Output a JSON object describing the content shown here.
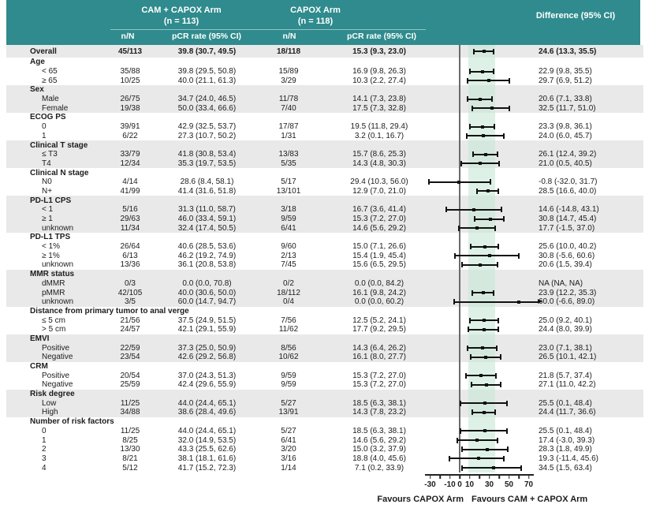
{
  "figure": {
    "header": {
      "arm1": {
        "title": "CAM + CAPOX Arm",
        "n": "(n = 113)"
      },
      "arm2": {
        "title": "CAPOX Arm",
        "n": "(n = 118)"
      },
      "diff_title": "Difference (95% CI)",
      "col_nN": "n/N",
      "col_pcr": "pCR rate (95% CI)"
    },
    "footer": {
      "favours_left": "Favours CAPOX Arm",
      "favours_right": "Favours CAM + CAPOX Arm"
    },
    "colors": {
      "header_bg": "#2f8b8d",
      "stripe": "#e9e9e9",
      "shaded_band": "#dff0e8",
      "marker": "#111111"
    }
  },
  "chart_data": {
    "type": "forest",
    "xlabel": "Difference in pCR rate",
    "xlim": [
      -40,
      80
    ],
    "axis_ticks": [
      -30,
      -20,
      -10,
      0,
      10,
      20,
      30,
      40,
      50,
      60,
      70
    ],
    "axis_tick_labels": [
      -30,
      -10,
      0,
      10,
      30,
      50,
      70
    ],
    "zero_line": 0,
    "shaded_band": [
      9,
      36
    ],
    "rows": [
      {
        "kind": "overall",
        "label": "Overall",
        "nN1": "45/113",
        "pcr1": "39.8 (30.7, 49.5)",
        "nN2": "18/118",
        "pcr2": "15.3 (9.3, 23.0)",
        "diff": "24.6 (13.3, 35.5)",
        "est": 24.6,
        "lo": 13.3,
        "hi": 35.5
      },
      {
        "kind": "group",
        "label": "Age"
      },
      {
        "kind": "item",
        "label": "< 65",
        "nN1": "35/88",
        "pcr1": "39.8 (29.5, 50.8)",
        "nN2": "15/89",
        "pcr2": "16.9 (9.8, 26.3)",
        "diff": "22.9 (9.8, 35.5)",
        "est": 22.9,
        "lo": 9.8,
        "hi": 35.5
      },
      {
        "kind": "item",
        "label": "≥ 65",
        "nN1": "10/25",
        "pcr1": "40.0 (21.1, 61.3)",
        "nN2": "3/29",
        "pcr2": "10.3 (2.2, 27.4)",
        "diff": "29.7 (6.9, 51.2)",
        "est": 29.7,
        "lo": 6.9,
        "hi": 51.2
      },
      {
        "kind": "group",
        "label": "Sex"
      },
      {
        "kind": "item",
        "label": "Male",
        "nN1": "26/75",
        "pcr1": "34.7 (24.0, 46.5)",
        "nN2": "11/78",
        "pcr2": "14.1 (7.3, 23.8)",
        "diff": "20.6 (7.1, 33.8)",
        "est": 20.6,
        "lo": 7.1,
        "hi": 33.8
      },
      {
        "kind": "item",
        "label": "Female",
        "nN1": "19/38",
        "pcr1": "50.0 (33.4, 66.6)",
        "nN2": "7/40",
        "pcr2": "17.5 (7.3, 32.8)",
        "diff": "32.5 (11.7, 51.0)",
        "est": 32.5,
        "lo": 11.7,
        "hi": 51.0
      },
      {
        "kind": "group",
        "label": "ECOG PS"
      },
      {
        "kind": "item",
        "label": "0",
        "nN1": "39/91",
        "pcr1": "42.9 (32.5, 53.7)",
        "nN2": "17/87",
        "pcr2": "19.5 (11.8, 29.4)",
        "diff": "23.3 (9.8, 36.1)",
        "est": 23.3,
        "lo": 9.8,
        "hi": 36.1
      },
      {
        "kind": "item",
        "label": "1",
        "nN1": "6/22",
        "pcr1": "27.3 (10.7, 50.2)",
        "nN2": "1/31",
        "pcr2": "3.2 (0.1, 16.7)",
        "diff": "24.0 (6.0, 45.7)",
        "est": 24.0,
        "lo": 6.0,
        "hi": 45.7
      },
      {
        "kind": "group",
        "label": "Clinical T stage"
      },
      {
        "kind": "item",
        "label": "≤ T3",
        "nN1": "33/79",
        "pcr1": "41.8 (30.8, 53.4)",
        "nN2": "13/83",
        "pcr2": "15.7 (8.6, 25.3)",
        "diff": "26.1 (12.4, 39.2)",
        "est": 26.1,
        "lo": 12.4,
        "hi": 39.2
      },
      {
        "kind": "item",
        "label": "T4",
        "nN1": "12/34",
        "pcr1": "35.3 (19.7, 53.5)",
        "nN2": "5/35",
        "pcr2": "14.3 (4.8, 30.3)",
        "diff": "21.0 (0.5, 40.5)",
        "est": 21.0,
        "lo": 0.5,
        "hi": 40.5
      },
      {
        "kind": "group",
        "label": "Clinical N stage"
      },
      {
        "kind": "item",
        "label": "N0",
        "nN1": "4/14",
        "pcr1": "28.6 (8.4, 58.1)",
        "nN2": "5/17",
        "pcr2": "29.4 (10.3, 56.0)",
        "diff": "-0.8 (-32.0, 31.7)",
        "est": -0.8,
        "lo": -32.0,
        "hi": 31.7
      },
      {
        "kind": "item",
        "label": "N+",
        "nN1": "41/99",
        "pcr1": "41.4 (31.6, 51.8)",
        "nN2": "13/101",
        "pcr2": "12.9 (7.0, 21.0)",
        "diff": "28.5 (16.6, 40.0)",
        "est": 28.5,
        "lo": 16.6,
        "hi": 40.0
      },
      {
        "kind": "group",
        "label": "PD-L1 CPS"
      },
      {
        "kind": "item",
        "label": "< 1",
        "nN1": "5/16",
        "pcr1": "31.3 (11.0, 58.7)",
        "nN2": "3/18",
        "pcr2": "16.7 (3.6, 41.4)",
        "diff": "14.6 (-14.8, 43.1)",
        "est": 14.6,
        "lo": -14.8,
        "hi": 43.1
      },
      {
        "kind": "item",
        "label": "≥ 1",
        "nN1": "29/63",
        "pcr1": "46.0 (33.4, 59.1)",
        "nN2": "9/59",
        "pcr2": "15.3 (7.2, 27.0)",
        "diff": "30.8 (14.7, 45.4)",
        "est": 30.8,
        "lo": 14.7,
        "hi": 45.4
      },
      {
        "kind": "item",
        "label": "unknown",
        "nN1": "11/34",
        "pcr1": "32.4 (17.4, 50.5)",
        "nN2": "6/41",
        "pcr2": "14.6 (5.6, 29.2)",
        "diff": "17.7 (-1.5, 37.0)",
        "est": 17.7,
        "lo": -1.5,
        "hi": 37.0
      },
      {
        "kind": "group",
        "label": "PD-L1 TPS"
      },
      {
        "kind": "item",
        "label": "< 1%",
        "nN1": "26/64",
        "pcr1": "40.6 (28.5, 53.6)",
        "nN2": "9/60",
        "pcr2": "15.0 (7.1, 26.6)",
        "diff": "25.6 (10.0, 40.2)",
        "est": 25.6,
        "lo": 10.0,
        "hi": 40.2
      },
      {
        "kind": "item",
        "label": "≥ 1%",
        "nN1": "6/13",
        "pcr1": "46.2 (19.2, 74.9)",
        "nN2": "2/13",
        "pcr2": "15.4 (1.9, 45.4)",
        "diff": "30.8 (-5.6, 60.6)",
        "est": 30.8,
        "lo": -5.6,
        "hi": 60.6
      },
      {
        "kind": "item",
        "label": "unknown",
        "nN1": "13/36",
        "pcr1": "36.1 (20.8, 53.8)",
        "nN2": "7/45",
        "pcr2": "15.6 (6.5, 29.5)",
        "diff": "20.6 (1.5, 39.4)",
        "est": 20.6,
        "lo": 1.5,
        "hi": 39.4
      },
      {
        "kind": "group",
        "label": "MMR status"
      },
      {
        "kind": "item",
        "label": "dMMR",
        "nN1": "0/3",
        "pcr1": "0.0 (0.0, 70.8)",
        "nN2": "0/2",
        "pcr2": "0.0 (0.0, 84.2)",
        "diff": "NA (NA, NA)"
      },
      {
        "kind": "item",
        "label": "pMMR",
        "nN1": "42/105",
        "pcr1": "40.0 (30.6, 50.0)",
        "nN2": "18/112",
        "pcr2": "16.1 (9.8, 24.2)",
        "diff": "23.9 (12.2, 35.3)",
        "est": 23.9,
        "lo": 12.2,
        "hi": 35.3
      },
      {
        "kind": "item",
        "label": "unknown",
        "nN1": "3/5",
        "pcr1": "60.0 (14.7, 94.7)",
        "nN2": "0/4",
        "pcr2": "0.0 (0.0, 60.2)",
        "diff": "60.0 (-6.6, 89.0)",
        "est": 60.0,
        "lo": -6.6,
        "hi": 89.0,
        "arrow": true
      },
      {
        "kind": "group",
        "label": "Distance from primary tumor to anal verge"
      },
      {
        "kind": "item",
        "label": "≤ 5 cm",
        "nN1": "21/56",
        "pcr1": "37.5 (24.9, 51.5)",
        "nN2": "7/56",
        "pcr2": "12.5 (5.2, 24.1)",
        "diff": "25.0 (9.2, 40.1)",
        "est": 25.0,
        "lo": 9.2,
        "hi": 40.1
      },
      {
        "kind": "item",
        "label": "> 5 cm",
        "nN1": "24/57",
        "pcr1": "42.1 (29.1, 55.9)",
        "nN2": "11/62",
        "pcr2": "17.7 (9.2, 29.5)",
        "diff": "24.4 (8.0, 39.9)",
        "est": 24.4,
        "lo": 8.0,
        "hi": 39.9
      },
      {
        "kind": "group",
        "label": "EMVI"
      },
      {
        "kind": "item",
        "label": "Positive",
        "nN1": "22/59",
        "pcr1": "37.3 (25.0, 50.9)",
        "nN2": "8/56",
        "pcr2": "14.3 (6.4, 26.2)",
        "diff": "23.0 (7.1, 38.1)",
        "est": 23.0,
        "lo": 7.1,
        "hi": 38.1
      },
      {
        "kind": "item",
        "label": "Negative",
        "nN1": "23/54",
        "pcr1": "42.6 (29.2, 56.8)",
        "nN2": "10/62",
        "pcr2": "16.1 (8.0, 27.7)",
        "diff": "26.5 (10.1, 42.1)",
        "est": 26.5,
        "lo": 10.1,
        "hi": 42.1
      },
      {
        "kind": "group",
        "label": "CRM"
      },
      {
        "kind": "item",
        "label": "Positive",
        "nN1": "20/54",
        "pcr1": "37.0 (24.3, 51.3)",
        "nN2": "9/59",
        "pcr2": "15.3 (7.2, 27.0)",
        "diff": "21.8 (5.7, 37.4)",
        "est": 21.8,
        "lo": 5.7,
        "hi": 37.4
      },
      {
        "kind": "item",
        "label": "Negative",
        "nN1": "25/59",
        "pcr1": "42.4 (29.6, 55.9)",
        "nN2": "9/59",
        "pcr2": "15.3 (7.2, 27.0)",
        "diff": "27.1 (11.0, 42.2)",
        "est": 27.1,
        "lo": 11.0,
        "hi": 42.2
      },
      {
        "kind": "group",
        "label": "Risk degree"
      },
      {
        "kind": "item",
        "label": "Low",
        "nN1": "11/25",
        "pcr1": "44.0 (24.4, 65.1)",
        "nN2": "5/27",
        "pcr2": "18.5 (6.3, 38.1)",
        "diff": "25.5 (0.1, 48.4)",
        "est": 25.5,
        "lo": 0.1,
        "hi": 48.4
      },
      {
        "kind": "item",
        "label": "High",
        "nN1": "34/88",
        "pcr1": "38.6 (28.4, 49.6)",
        "nN2": "13/91",
        "pcr2": "14.3 (7.8, 23.2)",
        "diff": "24.4 (11.7, 36.6)",
        "est": 24.4,
        "lo": 11.7,
        "hi": 36.6
      },
      {
        "kind": "group",
        "label": "Number of risk factors"
      },
      {
        "kind": "item",
        "label": "0",
        "nN1": "11/25",
        "pcr1": "44.0 (24.4, 65.1)",
        "nN2": "5/27",
        "pcr2": "18.5 (6.3, 38.1)",
        "diff": "25.5 (0.1, 48.4)",
        "est": 25.5,
        "lo": 0.1,
        "hi": 48.4
      },
      {
        "kind": "item",
        "label": "1",
        "nN1": "8/25",
        "pcr1": "32.0 (14.9, 53.5)",
        "nN2": "6/41",
        "pcr2": "14.6 (5.6, 29.2)",
        "diff": "17.4 (-3.0, 39.3)",
        "est": 17.4,
        "lo": -3.0,
        "hi": 39.3
      },
      {
        "kind": "item",
        "label": "2",
        "nN1": "13/30",
        "pcr1": "43.3 (25.5, 62.6)",
        "nN2": "3/20",
        "pcr2": "15.0 (3.2, 37.9)",
        "diff": "28.3 (1.8, 49.9)",
        "est": 28.3,
        "lo": 1.8,
        "hi": 49.9
      },
      {
        "kind": "item",
        "label": "3",
        "nN1": "8/21",
        "pcr1": "38.1 (18.1, 61.6)",
        "nN2": "3/16",
        "pcr2": "18.8 (4.0, 45.6)",
        "diff": "19.3 (-11.4, 45.6)",
        "est": 19.3,
        "lo": -11.4,
        "hi": 45.6
      },
      {
        "kind": "item",
        "label": "4",
        "nN1": "5/12",
        "pcr1": "41.7 (15.2, 72.3)",
        "nN2": "1/14",
        "pcr2": "7.1 (0.2, 33.9)",
        "diff": "34.5 (1.5, 63.4)",
        "est": 34.5,
        "lo": 1.5,
        "hi": 63.4
      }
    ]
  }
}
